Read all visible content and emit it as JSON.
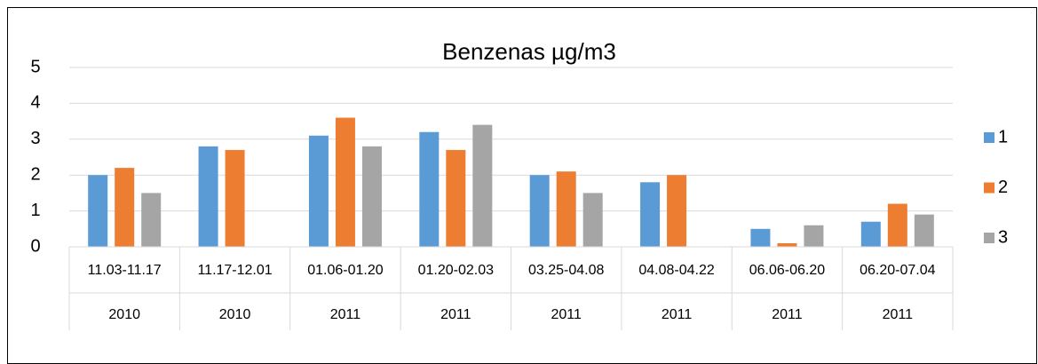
{
  "chart_data": {
    "type": "bar",
    "title": "Benzenas µg/m3",
    "categories": [
      "11.03-11.17",
      "11.17-12.01",
      "01.06-01.20",
      "01.20-02.03",
      "03.25-04.08",
      "04.08-04.22",
      "06.06-06.20",
      "06.20-07.04"
    ],
    "years": [
      "2010",
      "2010",
      "2011",
      "2011",
      "2011",
      "2011",
      "2011",
      "2011"
    ],
    "series": [
      {
        "name": "1",
        "color": "#5b9bd5",
        "values": [
          2.0,
          2.8,
          3.1,
          3.2,
          2.0,
          1.8,
          0.5,
          0.7
        ]
      },
      {
        "name": "2",
        "color": "#ed7d31",
        "values": [
          2.2,
          2.7,
          3.6,
          2.7,
          2.1,
          2.0,
          0.1,
          1.2
        ]
      },
      {
        "name": "3",
        "color": "#a5a5a5",
        "values": [
          1.5,
          null,
          2.8,
          3.4,
          1.5,
          null,
          0.6,
          0.9
        ]
      }
    ],
    "ylim": [
      0,
      5
    ],
    "yticks": [
      0,
      1,
      2,
      3,
      4,
      5
    ],
    "grid": true,
    "legend": "right"
  }
}
